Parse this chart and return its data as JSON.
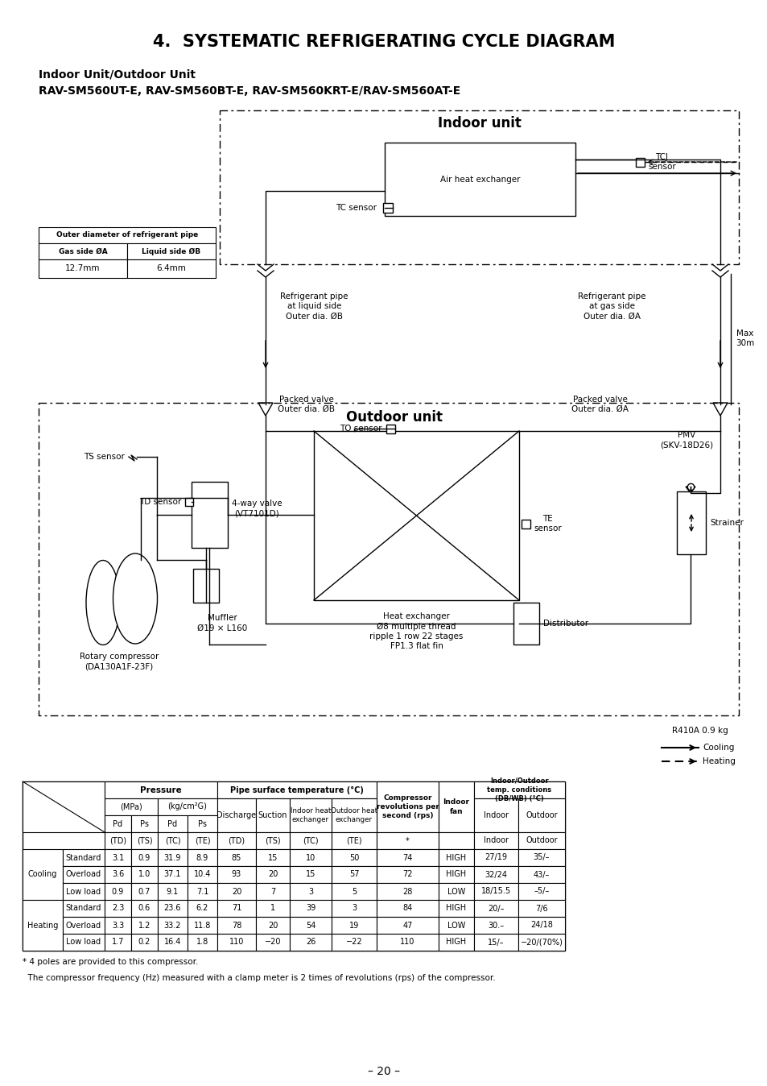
{
  "title": "4.  SYSTEMATIC REFRIGERATING CYCLE DIAGRAM",
  "subtitle1": "Indoor Unit/Outdoor Unit",
  "subtitle2": "RAV-SM560UT-E, RAV-SM560BT-E, RAV-SM560KRT-E/RAV-SM560AT-E",
  "refrigerant": "R410A 0.9 kg",
  "page": "– 20 –",
  "pipe_table_header": "Outer diameter of refrigerant pipe",
  "pipe_col1": "Gas side ØA",
  "pipe_col2": "Liquid side ØB",
  "pipe_val1": "12.7mm",
  "pipe_val2": "6.4mm",
  "indoor_label": "Indoor unit",
  "outdoor_label": "Outdoor unit",
  "air_hx_label": "Air heat exchanger",
  "tc_label": "TC sensor",
  "tcj_label": "TCJ\nsensor",
  "ts_label": "TS sensor",
  "td_label": "TD sensor",
  "to_label": "TO sensor",
  "te_label": "TE\nsensor",
  "pmv_label": "PMV\n(SKV-18D26)",
  "strainer_label": "Strainer",
  "dist_label": "Distributor",
  "fwv_label": "4-way valve\n(VT7101D)",
  "muf_label": "Muffler\nØ19 × L160",
  "comp_label": "Rotary compressor\n(DA130A1F-23F)",
  "hx_label": "Heat exchanger\nØ8 multiple thread\nripple 1 row 22 stages\nFP1.3 flat fin",
  "ref_liq": "Refrigerant pipe\nat liquid side\nOuter dia. ØB",
  "ref_gas": "Refrigerant pipe\nat gas side\nOuter dia. ØA",
  "pv_ob": "Packed valve\nOuter dia. ØB",
  "pv_oa": "Packed valve\nOuter dia. ØA",
  "max_label": "Max\n30m",
  "cooling_label": "Cooling",
  "heating_label": "Heating",
  "footnote1": "* 4 poles are provided to this compressor.",
  "footnote2": "  The compressor frequency (Hz) measured with a clamp meter is 2 times of revolutions (rps) of the compressor.",
  "table_data": [
    [
      "Cooling",
      "Standard",
      "3.1",
      "0.9",
      "31.9",
      "8.9",
      "85",
      "15",
      "10",
      "50",
      "74",
      "HIGH",
      "27/19",
      "35/–"
    ],
    [
      "Cooling",
      "Overload",
      "3.6",
      "1.0",
      "37.1",
      "10.4",
      "93",
      "20",
      "15",
      "57",
      "72",
      "HIGH",
      "32/24",
      "43/–"
    ],
    [
      "Cooling",
      "Low load",
      "0.9",
      "0.7",
      "9.1",
      "7.1",
      "20",
      "7",
      "3",
      "5",
      "28",
      "LOW",
      "18/15.5",
      "–5/–"
    ],
    [
      "Heating",
      "Standard",
      "2.3",
      "0.6",
      "23.6",
      "6.2",
      "71",
      "1",
      "39",
      "3",
      "84",
      "HIGH",
      "20/–",
      "7/6"
    ],
    [
      "Heating",
      "Overload",
      "3.3",
      "1.2",
      "33.2",
      "11.8",
      "78",
      "20",
      "54",
      "19",
      "47",
      "LOW",
      "30.–",
      "24/18"
    ],
    [
      "Heating",
      "Low load",
      "1.7",
      "0.2",
      "16.4",
      "1.8",
      "110",
      "−20",
      "26",
      "−22",
      "110",
      "HIGH",
      "15/–",
      "−20/(70%)"
    ]
  ]
}
